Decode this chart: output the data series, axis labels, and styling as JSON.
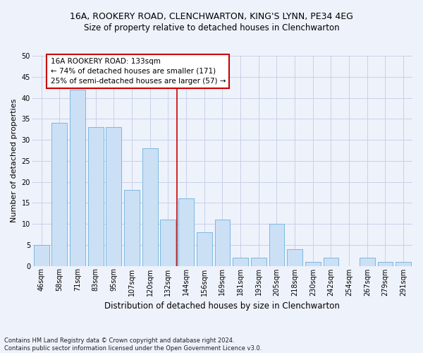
{
  "title": "16A, ROOKERY ROAD, CLENCHWARTON, KING'S LYNN, PE34 4EG",
  "subtitle": "Size of property relative to detached houses in Clenchwarton",
  "xlabel": "Distribution of detached houses by size in Clenchwarton",
  "ylabel": "Number of detached properties",
  "categories": [
    "46sqm",
    "58sqm",
    "71sqm",
    "83sqm",
    "95sqm",
    "107sqm",
    "120sqm",
    "132sqm",
    "144sqm",
    "156sqm",
    "169sqm",
    "181sqm",
    "193sqm",
    "205sqm",
    "218sqm",
    "230sqm",
    "242sqm",
    "254sqm",
    "267sqm",
    "279sqm",
    "291sqm"
  ],
  "values": [
    5,
    34,
    42,
    33,
    33,
    18,
    28,
    11,
    16,
    8,
    11,
    2,
    2,
    10,
    4,
    1,
    2,
    0,
    2,
    1,
    1
  ],
  "bar_color": "#cce0f5",
  "bar_edge_color": "#7ab8e0",
  "highlight_index": 7,
  "highlight_line_color": "#cc0000",
  "ylim": [
    0,
    50
  ],
  "yticks": [
    0,
    5,
    10,
    15,
    20,
    25,
    30,
    35,
    40,
    45,
    50
  ],
  "annotation_title": "16A ROOKERY ROAD: 133sqm",
  "annotation_line1": "← 74% of detached houses are smaller (171)",
  "annotation_line2": "25% of semi-detached houses are larger (57) →",
  "annotation_box_color": "#ffffff",
  "annotation_box_edge": "#cc0000",
  "footer": "Contains HM Land Registry data © Crown copyright and database right 2024.\nContains public sector information licensed under the Open Government Licence v3.0.",
  "bg_color": "#eef2fb",
  "grid_color": "#c8d0e8",
  "title_fontsize": 9,
  "subtitle_fontsize": 8.5,
  "ylabel_fontsize": 8,
  "xlabel_fontsize": 8.5,
  "tick_fontsize": 7,
  "annotation_fontsize": 7.5,
  "footer_fontsize": 6
}
